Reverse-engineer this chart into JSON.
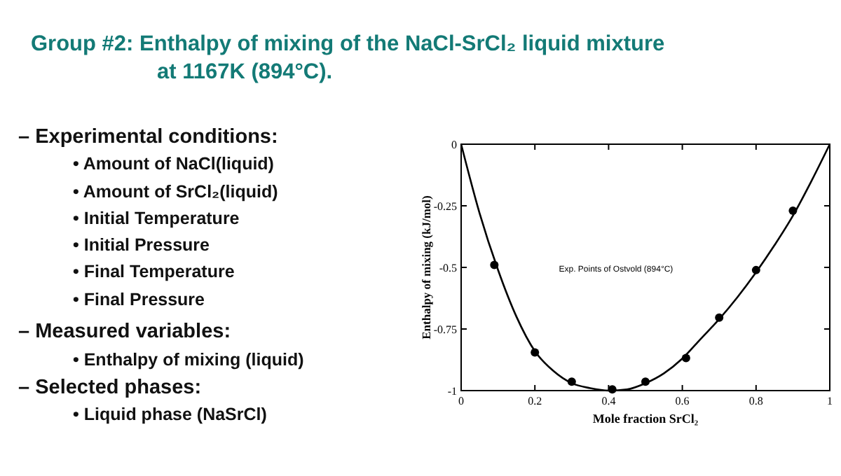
{
  "chart_data": {
    "type": "scatter",
    "title": "Group #2:  Enthalpy of mixing of the NaCl-SrCl₂ liquid mixture at 1167K (894°C).",
    "xlabel": "Mole fraction SrCl₂",
    "ylabel": "Enthalpy of mixing (kJ/mol)",
    "annotations": [
      "Exp. Points of Ostvold (894°C)",
      "– Experimental conditions:",
      "• Amount of NaCl(liquid)",
      "• Amount of SrCl₂(liquid)",
      "• Initial Temperature",
      "• Initial Pressure",
      "• Final Temperature",
      "• Final Pressure",
      "– Measured variables:",
      "• Enthalpy of mixing (liquid)",
      "– Selected phases:",
      "• Liquid phase (NaSrCl)"
    ],
    "series": [
      {
        "type": "line",
        "color": "#000000",
        "x": [
          0,
          0.05,
          0.1,
          0.15,
          0.2,
          0.25,
          0.3,
          0.35,
          0.4,
          0.45,
          0.5,
          0.55,
          0.6,
          0.65,
          0.7,
          0.75,
          0.8,
          0.85,
          0.9,
          0.95,
          1
        ],
        "values": [
          0,
          -0.28,
          -0.51,
          -0.7,
          -0.84,
          -0.92,
          -0.97,
          -0.99,
          -1.0,
          -0.995,
          -0.97,
          -0.93,
          -0.87,
          -0.79,
          -0.71,
          -0.62,
          -0.52,
          -0.41,
          -0.29,
          -0.15,
          0
        ]
      },
      {
        "color": "#000000",
        "marker": "circle",
        "x": [
          0.09,
          0.2,
          0.3,
          0.41,
          0.5,
          0.61,
          0.7,
          0.8,
          0.9
        ],
        "values": [
          -0.49,
          -0.845,
          -0.964,
          -0.995,
          -0.964,
          -0.868,
          -0.704,
          -0.511,
          -0.27
        ]
      }
    ],
    "xlim": [
      0,
      1
    ],
    "ylim": [
      -1,
      0
    ],
    "xticks": [
      0,
      0.2,
      0.4,
      0.6,
      0.8,
      1
    ],
    "yticks": [
      0,
      -0.25,
      -0.5,
      -0.75,
      -1
    ],
    "grid": false
  }
}
